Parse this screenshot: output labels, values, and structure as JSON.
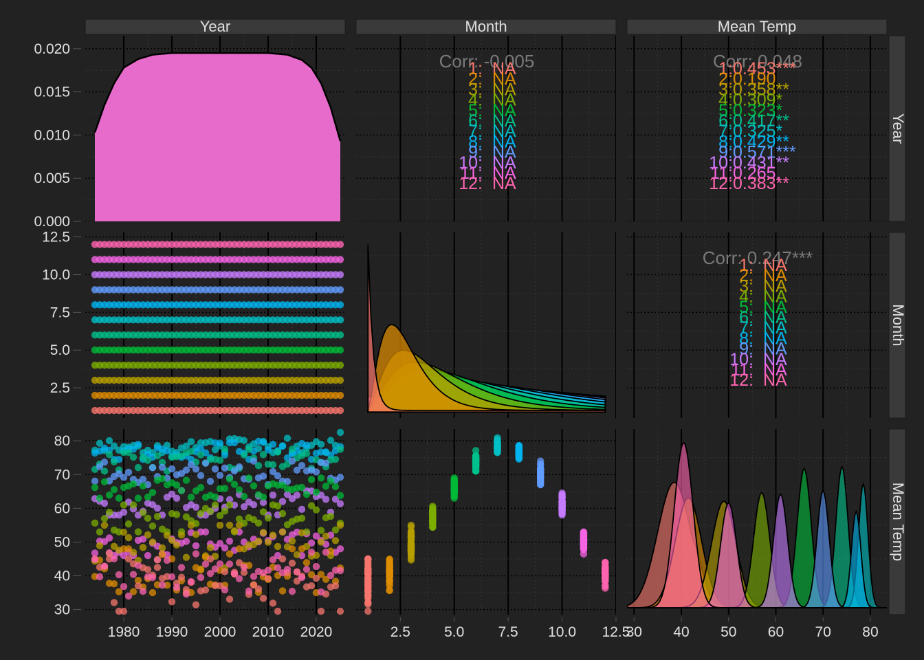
{
  "chart_data": {
    "type": "scatter",
    "variables": [
      "Year",
      "Month",
      "Mean Temp"
    ],
    "strip_labels_top": [
      "Year",
      "Month",
      "Mean Temp"
    ],
    "strip_labels_right": [
      "Year",
      "Month",
      "Mean Temp"
    ],
    "colors": {
      "background": "#222222",
      "strip_fill": "#3a3a3a",
      "text": "#e0e0e0",
      "corr_label": "#7a7a7a",
      "grid_major": "#000000",
      "grid_minor": "#3c3c3c",
      "months": [
        "#F8766D",
        "#DE8C00",
        "#B79F00",
        "#7CAE00",
        "#00BA38",
        "#00C08B",
        "#00BFC4",
        "#00B4F0",
        "#619CFF",
        "#C77CFF",
        "#F564E3",
        "#FF64B0"
      ]
    },
    "axes": {
      "year": {
        "range": [
          1972,
          2026
        ],
        "ticks": [
          1980,
          1990,
          2000,
          2010,
          2020
        ],
        "tick_labels": [
          "1980",
          "1990",
          "2000",
          "2010",
          "2020"
        ]
      },
      "month": {
        "range": [
          0.45,
          12.5
        ],
        "ticks": [
          2.5,
          5.0,
          7.5,
          10.0,
          12.5
        ],
        "tick_labels": [
          "2.5",
          "5.0",
          "7.5",
          "10.0",
          "12.5"
        ]
      },
      "temp": {
        "range": [
          28.5,
          83.5
        ],
        "ticks": [
          30,
          40,
          50,
          60,
          70,
          80
        ],
        "tick_labels": [
          "30",
          "40",
          "50",
          "60",
          "70",
          "80"
        ]
      },
      "density": {
        "range": [
          0,
          0.0215
        ],
        "ticks": [
          0,
          0.005,
          0.01,
          0.015,
          0.02
        ],
        "tick_labels": [
          "0.000",
          "0.005",
          "0.010",
          "0.015",
          "0.020"
        ]
      },
      "month_row": {
        "range": [
          0.5,
          12.8
        ],
        "ticks": [
          2.5,
          5.0,
          7.5,
          10.0,
          12.5
        ],
        "tick_labels": [
          "2.5",
          "5.0",
          "7.5",
          "10.0",
          "12.5"
        ]
      }
    },
    "correlations": {
      "year_month": {
        "overall": "Corr: -0.005",
        "groups": [
          {
            "label": "1:",
            "value": "NA"
          },
          {
            "label": "2:",
            "value": "NA"
          },
          {
            "label": "3:",
            "value": "NA"
          },
          {
            "label": "4:",
            "value": "NA"
          },
          {
            "label": "5:",
            "value": "NA"
          },
          {
            "label": "6:",
            "value": "NA"
          },
          {
            "label": "7:",
            "value": "NA"
          },
          {
            "label": "8:",
            "value": "NA"
          },
          {
            "label": "9:",
            "value": "NA"
          },
          {
            "label": "10:",
            "value": "NA"
          },
          {
            "label": "11:",
            "value": "NA"
          },
          {
            "label": "12:",
            "value": "NA"
          }
        ]
      },
      "year_temp": {
        "overall": "Corr: 0.048",
        "groups": [
          {
            "label": "1:",
            "value": "0.453***"
          },
          {
            "label": "2:",
            "value": "0.190"
          },
          {
            "label": "3:",
            "value": "0.358**"
          },
          {
            "label": "4:",
            "value": "0.309*"
          },
          {
            "label": "5:",
            "value": "0.323*"
          },
          {
            "label": "6:",
            "value": "0.417**"
          },
          {
            "label": "7:",
            "value": "0.325*"
          },
          {
            "label": "8:",
            "value": "0.429**"
          },
          {
            "label": "9:",
            "value": "0.571***"
          },
          {
            "label": "10:",
            "value": "0.431**"
          },
          {
            "label": "11:",
            "value": "0.265."
          },
          {
            "label": "12:",
            "value": "0.383**"
          }
        ]
      },
      "month_temp": {
        "overall": "Corr: 0.247***",
        "groups": [
          {
            "label": "1:",
            "value": "NA"
          },
          {
            "label": "2:",
            "value": "NA"
          },
          {
            "label": "3:",
            "value": "NA"
          },
          {
            "label": "4:",
            "value": "NA"
          },
          {
            "label": "5:",
            "value": "NA"
          },
          {
            "label": "6:",
            "value": "NA"
          },
          {
            "label": "7:",
            "value": "NA"
          },
          {
            "label": "8:",
            "value": "NA"
          },
          {
            "label": "9:",
            "value": "NA"
          },
          {
            "label": "10:",
            "value": "NA"
          },
          {
            "label": "11:",
            "value": "NA"
          },
          {
            "label": "12:",
            "value": "NA"
          }
        ]
      }
    },
    "year_density": {
      "x": [
        1974,
        1976,
        1978,
        1980,
        1983,
        1986,
        1990,
        2000,
        2010,
        2014,
        2017,
        2019,
        2021,
        2023,
        2025
      ],
      "y": [
        0.0103,
        0.0135,
        0.016,
        0.0178,
        0.0188,
        0.0193,
        0.0195,
        0.0195,
        0.0195,
        0.0193,
        0.0187,
        0.0178,
        0.016,
        0.0132,
        0.0093
      ]
    },
    "year_by_month_points": {
      "years_from": 1974,
      "years_to": 2025,
      "months": [
        1,
        2,
        3,
        4,
        5,
        6,
        7,
        8,
        9,
        10,
        11,
        12
      ]
    },
    "month_density_peaks": [
      {
        "month": 1,
        "peak": 12.0
      },
      {
        "month": 2,
        "peak": 6.7
      },
      {
        "month": 3,
        "peak": 5.0
      },
      {
        "month": 4,
        "peak": 4.2
      },
      {
        "month": 5,
        "peak": 3.7
      },
      {
        "month": 6,
        "peak": 3.3
      },
      {
        "month": 7,
        "peak": 3.05
      },
      {
        "month": 8,
        "peak": 2.85
      },
      {
        "month": 9,
        "peak": 2.65
      },
      {
        "month": 10,
        "peak": 2.5
      },
      {
        "month": 11,
        "peak": 2.35
      },
      {
        "month": 12,
        "peak": 1.9
      }
    ],
    "temp_by_month": [
      {
        "month": 1,
        "mean": 38.5,
        "sd": 3.5,
        "min": 29.5,
        "max": 45
      },
      {
        "month": 2,
        "mean": 41.5,
        "sd": 2.8,
        "min": 35,
        "max": 48
      },
      {
        "month": 3,
        "mean": 49,
        "sd": 2.6,
        "min": 42,
        "max": 55
      },
      {
        "month": 4,
        "mean": 57,
        "sd": 1.7,
        "min": 53,
        "max": 61
      },
      {
        "month": 5,
        "mean": 66,
        "sd": 1.5,
        "min": 63,
        "max": 69
      },
      {
        "month": 6,
        "mean": 74,
        "sd": 1.3,
        "min": 71,
        "max": 77.5
      },
      {
        "month": 7,
        "mean": 78.5,
        "sd": 1.0,
        "min": 76.5,
        "max": 83
      },
      {
        "month": 8,
        "mean": 77,
        "sd": 1.0,
        "min": 74.5,
        "max": 80
      },
      {
        "month": 9,
        "mean": 70,
        "sd": 1.3,
        "min": 67,
        "max": 74
      },
      {
        "month": 10,
        "mean": 61,
        "sd": 1.5,
        "min": 58,
        "max": 65.5
      },
      {
        "month": 11,
        "mean": 50,
        "sd": 1.7,
        "min": 46,
        "max": 53
      },
      {
        "month": 12,
        "mean": 40.5,
        "sd": 2.0,
        "min": 34,
        "max": 47
      }
    ],
    "temp_density_peak_heights": [
      0.73,
      0.64,
      0.62,
      0.67,
      0.81,
      0.82,
      0.72,
      0.56,
      0.68,
      0.66,
      0.61,
      0.96
    ],
    "legend": "none",
    "grid": true
  }
}
